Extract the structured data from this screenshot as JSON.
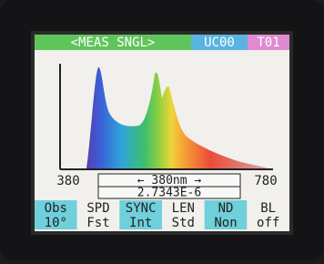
{
  "header": {
    "mode": "<MEAS SNGL>",
    "channel": "UC00",
    "tag": "T01"
  },
  "axis": {
    "min": "380",
    "max": "780"
  },
  "cursor": {
    "wavelength": "← 380nm →",
    "reading": "2.7343E-6"
  },
  "menu": [
    {
      "label": "Obs",
      "value": "10°"
    },
    {
      "label": "SPD",
      "value": "Fst"
    },
    {
      "label": "SYNC",
      "value": "Int"
    },
    {
      "label": "LEN",
      "value": "Std"
    },
    {
      "label": "ND",
      "value": "Non"
    },
    {
      "label": "BL",
      "value": "off"
    }
  ]
}
